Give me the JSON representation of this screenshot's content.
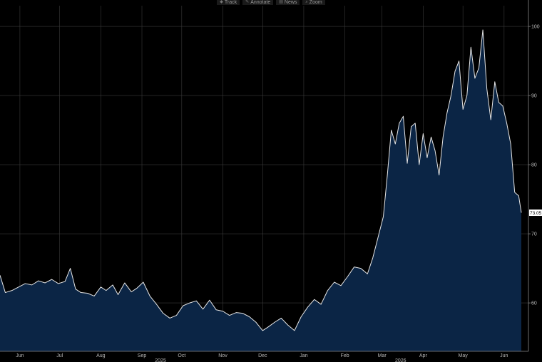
{
  "toolbar": {
    "buttons": [
      {
        "label": "Track",
        "icon": "pin-icon"
      },
      {
        "label": "Annotate",
        "icon": "pencil-icon"
      },
      {
        "label": "News",
        "icon": "news-icon"
      },
      {
        "label": "Zoom",
        "icon": "zoom-icon"
      }
    ]
  },
  "colors": {
    "background": "#000000",
    "line": "#e6e6e6",
    "area_fill": "#0b2545",
    "grid": "#3a3a3a",
    "last_value_badge": "#ffffff"
  },
  "chart_data": {
    "type": "area",
    "title": "",
    "xlabel": "",
    "ylabel": "",
    "ylim": [
      53,
      103
    ],
    "y_ticks": [
      60,
      70,
      80,
      90,
      100
    ],
    "y_tick_labels": [
      "60",
      "70",
      "80",
      "90",
      "100"
    ],
    "y_axis_side": "right",
    "grid": true,
    "legend": "none",
    "last_value_label": "73.05",
    "x_tick_labels": [
      "Jun",
      "Jul",
      "Aug",
      "Sep",
      "Oct",
      "Nov",
      "Dec",
      "Jan",
      "Feb",
      "Mar",
      "Apr",
      "May",
      "Jun"
    ],
    "x_tick_dates": [
      "2025-06-01",
      "2025-07-01",
      "2025-08-01",
      "2025-09-01",
      "2025-10-01",
      "2025-11-01",
      "2025-12-01",
      "2026-01-01",
      "2026-02-01",
      "2026-03-01",
      "2026-04-01",
      "2026-05-01",
      "2026-06-01"
    ],
    "year_labels": [
      {
        "text": "2025",
        "date": "2025-09-15"
      },
      {
        "text": "2026",
        "date": "2026-03-15"
      }
    ],
    "series": [
      {
        "x": [
          "2025-05-17",
          "2025-05-21",
          "2025-05-26",
          "2025-05-31",
          "2025-06-05",
          "2025-06-10",
          "2025-06-15",
          "2025-06-20",
          "2025-06-25",
          "2025-06-30",
          "2025-07-05",
          "2025-07-09",
          "2025-07-13",
          "2025-07-17",
          "2025-07-22",
          "2025-07-27",
          "2025-08-01",
          "2025-08-05",
          "2025-08-10",
          "2025-08-14",
          "2025-08-19",
          "2025-08-24",
          "2025-08-28",
          "2025-09-02",
          "2025-09-07",
          "2025-09-12",
          "2025-09-17",
          "2025-09-22",
          "2025-09-27",
          "2025-10-02",
          "2025-10-07",
          "2025-10-12",
          "2025-10-17",
          "2025-10-22",
          "2025-10-27",
          "2025-11-01",
          "2025-11-06",
          "2025-11-11",
          "2025-11-16",
          "2025-11-21",
          "2025-11-26",
          "2025-12-01",
          "2025-12-05",
          "2025-12-10",
          "2025-12-15",
          "2025-12-20",
          "2025-12-25",
          "2025-12-30",
          "2026-01-04",
          "2026-01-09",
          "2026-01-14",
          "2026-01-19",
          "2026-01-24",
          "2026-01-29",
          "2026-02-03",
          "2026-02-08",
          "2026-02-13",
          "2026-02-18",
          "2026-02-22",
          "2026-02-26",
          "2026-03-02",
          "2026-03-05",
          "2026-03-08",
          "2026-03-11",
          "2026-03-14",
          "2026-03-17",
          "2026-03-20",
          "2026-03-23",
          "2026-03-26",
          "2026-03-29",
          "2026-04-01",
          "2026-04-04",
          "2026-04-07",
          "2026-04-10",
          "2026-04-13",
          "2026-04-16",
          "2026-04-19",
          "2026-04-22",
          "2026-04-25",
          "2026-04-28",
          "2026-05-01",
          "2026-05-04",
          "2026-05-07",
          "2026-05-10",
          "2026-05-13",
          "2026-05-16",
          "2026-05-19",
          "2026-05-22",
          "2026-05-25",
          "2026-05-28",
          "2026-05-31",
          "2026-06-03",
          "2026-06-06",
          "2026-06-09",
          "2026-06-12",
          "2026-06-14"
        ],
        "values": [
          64.0,
          61.5,
          61.8,
          62.3,
          62.8,
          62.6,
          63.2,
          62.9,
          63.4,
          62.8,
          63.1,
          65.0,
          62.0,
          61.5,
          61.4,
          61.0,
          62.3,
          61.8,
          62.6,
          61.2,
          62.9,
          61.6,
          62.1,
          63.0,
          61.0,
          59.8,
          58.5,
          57.8,
          58.2,
          59.6,
          60.0,
          60.3,
          59.1,
          60.4,
          59.0,
          58.8,
          58.2,
          58.6,
          58.5,
          58.0,
          57.2,
          56.0,
          56.5,
          57.2,
          57.8,
          56.8,
          56.0,
          58.0,
          59.4,
          60.5,
          59.8,
          61.8,
          63.0,
          62.5,
          63.8,
          65.2,
          65.0,
          64.2,
          66.5,
          69.5,
          72.5,
          78.5,
          85.0,
          83.0,
          86.0,
          87.0,
          80.2,
          85.5,
          86.0,
          80.0,
          84.5,
          81.0,
          84.0,
          82.0,
          78.5,
          84.0,
          87.5,
          90.0,
          93.5,
          95.0,
          88.0,
          90.0,
          97.0,
          92.5,
          94.0,
          99.5,
          91.0,
          86.5,
          92.0,
          89.0,
          88.5,
          86.0,
          83.0,
          76.0,
          75.5,
          73.05
        ]
      }
    ]
  }
}
